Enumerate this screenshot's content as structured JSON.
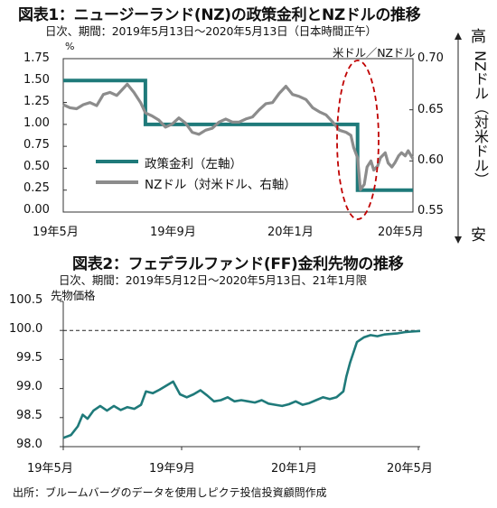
{
  "chart_data": [
    {
      "type": "line",
      "title": "図表1：ニュージーランド(NZ)の政策金利とNZドルの推移",
      "subtitle": "日次、期間：2019年5月13日～2020年5月13日（日本時間正午）",
      "left_unit": "%",
      "right_unit": "米ドル／NZドル",
      "right_axis_label": "NZドル（対米ドル）",
      "right_top_label": "高",
      "right_bottom_label": "安",
      "x_tick_labels": [
        "19年5月",
        "19年9月",
        "20年1月",
        "20年5月"
      ],
      "y_left_ticks": [
        "1.75",
        "1.50",
        "1.25",
        "1.00",
        "0.75",
        "0.50",
        "0.25",
        "0.00"
      ],
      "y_left_lim": [
        0,
        1.75
      ],
      "y_right_ticks": [
        "0.70",
        "0.65",
        "0.60",
        "0.55"
      ],
      "y_right_lim": [
        0.55,
        0.7
      ],
      "x_range": [
        "2019-05-13",
        "2020-05-13"
      ],
      "legend_placement": "center-left",
      "grid": false,
      "annotation": "dashed red ellipse around March 2020",
      "series": [
        {
          "name": "政策金利（左軸）",
          "axis": "left",
          "color": "#1f7a7a",
          "points": [
            [
              "2019-05-13",
              1.5
            ],
            [
              "2019-08-07",
              1.5
            ],
            [
              "2019-08-07",
              1.0
            ],
            [
              "2020-03-16",
              1.0
            ],
            [
              "2020-03-16",
              0.25
            ],
            [
              "2020-05-13",
              0.25
            ]
          ]
        },
        {
          "name": "NZドル（対米ドル、右軸）",
          "axis": "right",
          "color": "#8c8c8c",
          "points": [
            [
              "2019-05-13",
              0.655
            ],
            [
              "2019-05-20",
              0.652
            ],
            [
              "2019-05-27",
              0.651
            ],
            [
              "2019-06-03",
              0.655
            ],
            [
              "2019-06-10",
              0.657
            ],
            [
              "2019-06-17",
              0.654
            ],
            [
              "2019-06-24",
              0.665
            ],
            [
              "2019-07-01",
              0.667
            ],
            [
              "2019-07-08",
              0.664
            ],
            [
              "2019-07-15",
              0.671
            ],
            [
              "2019-07-19",
              0.675
            ],
            [
              "2019-07-26",
              0.667
            ],
            [
              "2019-08-02",
              0.657
            ],
            [
              "2019-08-07",
              0.647
            ],
            [
              "2019-08-14",
              0.644
            ],
            [
              "2019-08-21",
              0.64
            ],
            [
              "2019-08-28",
              0.633
            ],
            [
              "2019-09-04",
              0.636
            ],
            [
              "2019-09-11",
              0.642
            ],
            [
              "2019-09-18",
              0.637
            ],
            [
              "2019-09-25",
              0.628
            ],
            [
              "2019-10-02",
              0.626
            ],
            [
              "2019-10-09",
              0.63
            ],
            [
              "2019-10-16",
              0.632
            ],
            [
              "2019-10-23",
              0.638
            ],
            [
              "2019-10-30",
              0.641
            ],
            [
              "2019-11-06",
              0.638
            ],
            [
              "2019-11-13",
              0.638
            ],
            [
              "2019-11-20",
              0.641
            ],
            [
              "2019-11-27",
              0.643
            ],
            [
              "2019-12-04",
              0.65
            ],
            [
              "2019-12-11",
              0.656
            ],
            [
              "2019-12-18",
              0.657
            ],
            [
              "2019-12-25",
              0.666
            ],
            [
              "2020-01-01",
              0.673
            ],
            [
              "2020-01-08",
              0.665
            ],
            [
              "2020-01-15",
              0.663
            ],
            [
              "2020-01-22",
              0.66
            ],
            [
              "2020-01-29",
              0.652
            ],
            [
              "2020-02-05",
              0.648
            ],
            [
              "2020-02-12",
              0.645
            ],
            [
              "2020-02-19",
              0.638
            ],
            [
              "2020-02-26",
              0.63
            ],
            [
              "2020-03-04",
              0.628
            ],
            [
              "2020-03-09",
              0.625
            ],
            [
              "2020-03-12",
              0.613
            ],
            [
              "2020-03-16",
              0.603
            ],
            [
              "2020-03-19",
              0.572
            ],
            [
              "2020-03-23",
              0.577
            ],
            [
              "2020-03-26",
              0.594
            ],
            [
              "2020-03-30",
              0.6
            ],
            [
              "2020-04-02",
              0.591
            ],
            [
              "2020-04-06",
              0.595
            ],
            [
              "2020-04-09",
              0.603
            ],
            [
              "2020-04-14",
              0.608
            ],
            [
              "2020-04-17",
              0.598
            ],
            [
              "2020-04-21",
              0.594
            ],
            [
              "2020-04-24",
              0.598
            ],
            [
              "2020-04-28",
              0.605
            ],
            [
              "2020-05-01",
              0.608
            ],
            [
              "2020-05-05",
              0.605
            ],
            [
              "2020-05-08",
              0.61
            ],
            [
              "2020-05-13",
              0.602
            ]
          ]
        }
      ]
    },
    {
      "type": "line",
      "title": "図表2：フェデラルファンド(FF)金利先物の推移",
      "subtitle": "日次、期間：2019年5月12日～2020年5月13日、21年1月限",
      "ylabel": "先物価格",
      "x_tick_labels": [
        "19年5月",
        "19年9月",
        "20年1月",
        "20年5月"
      ],
      "y_ticks": [
        "100.5",
        "100.0",
        "99.5",
        "99.0",
        "98.5",
        "98.0"
      ],
      "ylim": [
        98.0,
        100.5
      ],
      "x_range": [
        "2019-05-12",
        "2020-05-13"
      ],
      "reference_line": 100.0,
      "grid": false,
      "series": [
        {
          "color": "#1f7a7a",
          "points": [
            [
              "2019-05-12",
              98.15
            ],
            [
              "2019-05-20",
              98.2
            ],
            [
              "2019-05-27",
              98.35
            ],
            [
              "2019-06-01",
              98.55
            ],
            [
              "2019-06-06",
              98.48
            ],
            [
              "2019-06-12",
              98.62
            ],
            [
              "2019-06-19",
              98.7
            ],
            [
              "2019-06-26",
              98.62
            ],
            [
              "2019-07-03",
              98.7
            ],
            [
              "2019-07-10",
              98.63
            ],
            [
              "2019-07-17",
              98.68
            ],
            [
              "2019-07-24",
              98.65
            ],
            [
              "2019-07-31",
              98.72
            ],
            [
              "2019-08-05",
              98.95
            ],
            [
              "2019-08-12",
              98.92
            ],
            [
              "2019-08-19",
              98.98
            ],
            [
              "2019-08-26",
              99.05
            ],
            [
              "2019-09-02",
              99.12
            ],
            [
              "2019-09-09",
              98.9
            ],
            [
              "2019-09-16",
              98.85
            ],
            [
              "2019-09-23",
              98.9
            ],
            [
              "2019-09-30",
              98.97
            ],
            [
              "2019-10-07",
              98.88
            ],
            [
              "2019-10-14",
              98.78
            ],
            [
              "2019-10-21",
              98.8
            ],
            [
              "2019-10-28",
              98.85
            ],
            [
              "2019-11-04",
              98.78
            ],
            [
              "2019-11-11",
              98.8
            ],
            [
              "2019-11-18",
              98.78
            ],
            [
              "2019-11-25",
              98.76
            ],
            [
              "2019-12-02",
              98.8
            ],
            [
              "2019-12-09",
              98.74
            ],
            [
              "2019-12-16",
              98.72
            ],
            [
              "2019-12-23",
              98.7
            ],
            [
              "2019-12-30",
              98.73
            ],
            [
              "2020-01-06",
              98.78
            ],
            [
              "2020-01-13",
              98.72
            ],
            [
              "2020-01-20",
              98.75
            ],
            [
              "2020-01-27",
              98.8
            ],
            [
              "2020-02-03",
              98.85
            ],
            [
              "2020-02-10",
              98.82
            ],
            [
              "2020-02-17",
              98.85
            ],
            [
              "2020-02-24",
              98.95
            ],
            [
              "2020-02-27",
              99.2
            ],
            [
              "2020-03-02",
              99.45
            ],
            [
              "2020-03-05",
              99.6
            ],
            [
              "2020-03-09",
              99.8
            ],
            [
              "2020-03-16",
              99.88
            ],
            [
              "2020-03-23",
              99.92
            ],
            [
              "2020-03-30",
              99.9
            ],
            [
              "2020-04-06",
              99.93
            ],
            [
              "2020-04-13",
              99.94
            ],
            [
              "2020-04-20",
              99.95
            ],
            [
              "2020-04-27",
              99.97
            ],
            [
              "2020-05-04",
              99.98
            ],
            [
              "2020-05-13",
              99.99
            ]
          ]
        }
      ]
    }
  ],
  "legend": {
    "rate_label": "政策金利（左軸）",
    "nzd_label": "NZドル（対米ドル、右軸）"
  },
  "source_text": "出所：ブルームバーグのデータを使用しピクテ投信投資顧問作成",
  "colors": {
    "teal": "#1f7a7a",
    "gray": "#8c8c8c",
    "ellipse": "#c00000",
    "axis": "#333333"
  }
}
